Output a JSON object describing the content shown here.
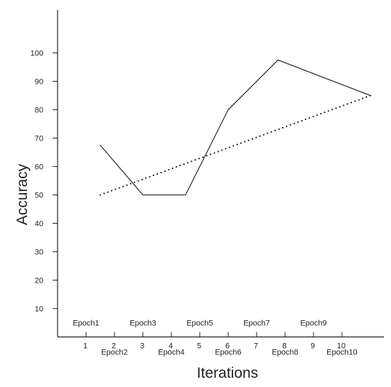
{
  "chart_data": {
    "type": "line",
    "title": "",
    "xlabel": "Iterations",
    "ylabel": "Accuracy",
    "xlim": [
      0,
      11
    ],
    "ylim": [
      0,
      110
    ],
    "x_ticks": [
      1,
      2,
      3,
      4,
      5,
      6,
      7,
      8,
      9,
      10
    ],
    "y_ticks": [
      10,
      20,
      30,
      40,
      50,
      60,
      70,
      80,
      90,
      100
    ],
    "x_category_labels": [
      {
        "x": 1,
        "label": "Epoch1",
        "row": "upper"
      },
      {
        "x": 2,
        "label": "Epoch2",
        "row": "lower"
      },
      {
        "x": 3,
        "label": "Epoch3",
        "row": "upper"
      },
      {
        "x": 4,
        "label": "Epoch4",
        "row": "lower"
      },
      {
        "x": 5,
        "label": "Epoch5",
        "row": "upper"
      },
      {
        "x": 6,
        "label": "Epoch6",
        "row": "lower"
      },
      {
        "x": 7,
        "label": "Epoch7",
        "row": "upper"
      },
      {
        "x": 8,
        "label": "Epoch8",
        "row": "lower"
      },
      {
        "x": 9,
        "label": "Epoch9",
        "row": "upper"
      },
      {
        "x": 10,
        "label": "Epoch10",
        "row": "lower"
      }
    ],
    "grid": false,
    "legend": "none",
    "series": [
      {
        "style": "solid",
        "color": "#333333",
        "points": [
          {
            "x": 1.5,
            "y": 67.5
          },
          {
            "x": 3.0,
            "y": 50.0
          },
          {
            "x": 4.5,
            "y": 50.0
          },
          {
            "x": 6.0,
            "y": 80.0
          },
          {
            "x": 7.75,
            "y": 97.5
          },
          {
            "x": 11.0,
            "y": 85.0
          }
        ]
      },
      {
        "style": "dotted",
        "color": "#111111",
        "points": [
          {
            "x": 1.5,
            "y": 50.0
          },
          {
            "x": 11.0,
            "y": 85.0
          }
        ]
      }
    ]
  }
}
